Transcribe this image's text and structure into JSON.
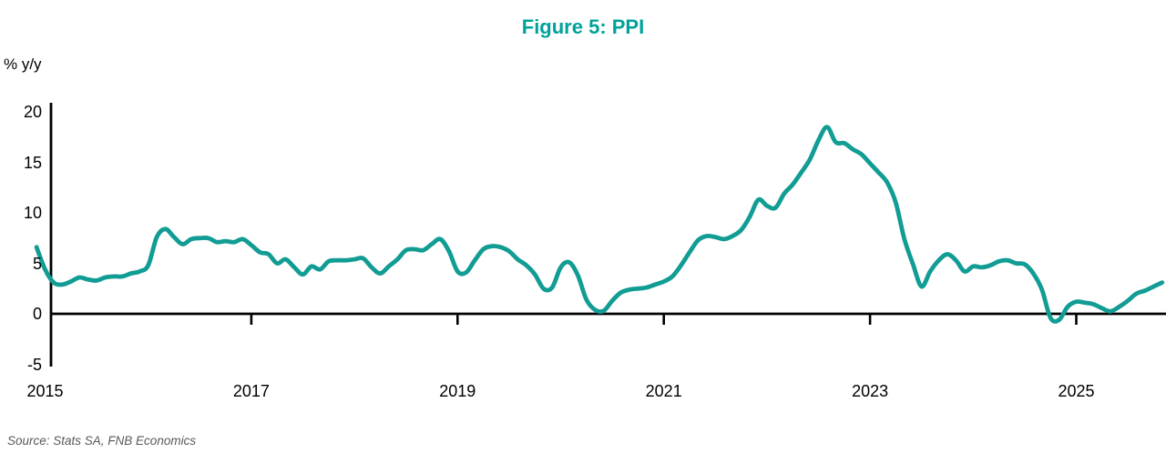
{
  "page": {
    "title": "Figure 5: PPI",
    "unit_label": "% y/y",
    "source": "Source: Stats SA, FNB Economics"
  },
  "colors": {
    "line": "#119C94",
    "title": "#00A29B",
    "axis": "#000000",
    "source_text": "#595959",
    "background": "#ffffff"
  },
  "chart_data": {
    "type": "line",
    "title": "Figure 5: PPI",
    "ylabel": "% y/y",
    "xlabel": "",
    "grid": false,
    "legend": "none",
    "xlim": [
      2014.88,
      2025.95
    ],
    "ylim": [
      -5,
      20
    ],
    "x_ticks": [
      2015,
      2017,
      2019,
      2021,
      2023,
      2025
    ],
    "x_tick_labels": [
      "2015",
      "2017",
      "2019",
      "2021",
      "2023",
      "2025"
    ],
    "y_ticks": [
      20,
      15,
      10,
      5,
      0,
      -5
    ],
    "y_tick_labels": [
      "20",
      "15",
      "10",
      "5",
      "0",
      "-5"
    ],
    "series": [
      {
        "name": "PPI (% y/y)",
        "frequency": "monthly",
        "start": "2014-12",
        "end": "2025-11",
        "values": [
          6.6,
          4.4,
          3.1,
          2.9,
          3.2,
          3.6,
          3.4,
          3.3,
          3.6,
          3.7,
          3.7,
          4.0,
          4.2,
          4.8,
          7.6,
          8.4,
          7.6,
          6.9,
          7.4,
          7.5,
          7.5,
          7.1,
          7.2,
          7.1,
          7.4,
          6.8,
          6.1,
          5.9,
          5.0,
          5.4,
          4.6,
          3.9,
          4.7,
          4.4,
          5.2,
          5.3,
          5.3,
          5.4,
          5.5,
          4.6,
          4.0,
          4.7,
          5.4,
          6.3,
          6.4,
          6.3,
          6.9,
          7.4,
          6.2,
          4.2,
          4.1,
          5.3,
          6.4,
          6.7,
          6.6,
          6.2,
          5.4,
          4.8,
          3.9,
          2.5,
          2.6,
          4.6,
          5.1,
          3.8,
          1.4,
          0.4,
          0.3,
          1.3,
          2.1,
          2.4,
          2.5,
          2.6,
          2.9,
          3.2,
          3.7,
          4.8,
          6.1,
          7.3,
          7.7,
          7.6,
          7.4,
          7.7,
          8.3,
          9.6,
          11.3,
          10.7,
          10.5,
          11.9,
          12.8,
          14.0,
          15.3,
          17.2,
          18.5,
          17.0,
          16.9,
          16.3,
          15.8,
          14.9,
          14.0,
          13.0,
          11.0,
          7.4,
          4.9,
          2.7,
          4.2,
          5.3,
          5.9,
          5.3,
          4.2,
          4.7,
          4.6,
          4.8,
          5.2,
          5.3,
          5.0,
          4.9,
          4.0,
          2.4,
          -0.4,
          -0.6,
          0.7,
          1.2,
          1.1,
          0.95,
          0.55,
          0.25,
          0.7,
          1.3,
          2.0,
          2.3,
          2.7,
          3.1
        ]
      }
    ],
    "source": "Source: Stats SA, FNB Economics"
  }
}
